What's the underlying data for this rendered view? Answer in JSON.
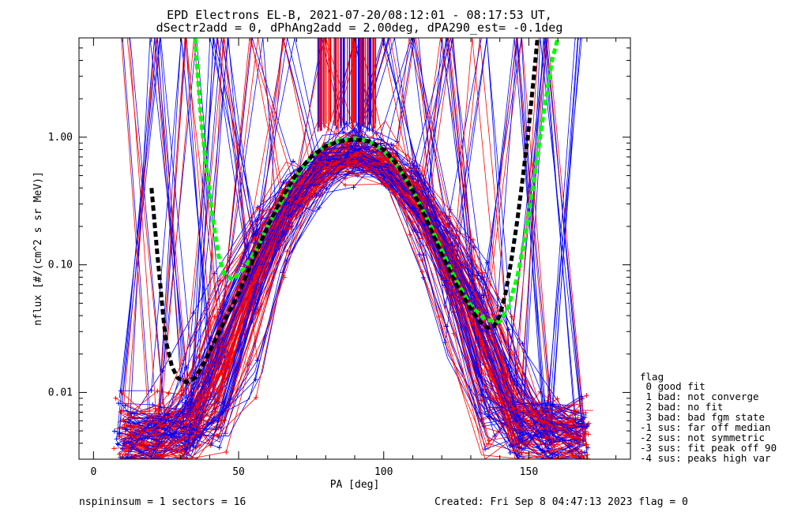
{
  "header": {
    "title_line1": "EPD Electrons EL-B, 2021-07-20/08:12:01 - 08:17:53 UT,",
    "title_line2": "dSectr2add = 0, dPhAng2add = 2.00deg, dPA290_est=  -0.1deg"
  },
  "footer": {
    "left": "nspininsum =  1  sectors = 16",
    "right": "Created: Fri Sep  8 04:47:13 2023   flag = 0"
  },
  "legend": {
    "title": "flag",
    "entries": [
      " 0 good fit",
      " 1 bad: not converge",
      " 2 bad: no fit",
      " 3 bad: bad fgm state",
      "-1 sus: far off median",
      "-2 sus: not symmetric",
      "-3 sus: fit peak off 90",
      "-4 sus: peaks high var"
    ]
  },
  "chart_data": {
    "type": "line",
    "xlabel": "PA [deg]",
    "ylabel": "nflux [#/(cm^2 s sr MeV)]",
    "xlim": [
      -5,
      185
    ],
    "ylim": [
      0.003,
      6.0
    ],
    "yscale": "log",
    "x_ticks": [
      0,
      50,
      100,
      150
    ],
    "y_ticks": [
      {
        "value": 0.01,
        "label": "0.01"
      },
      {
        "value": 0.1,
        "label": "0.10"
      },
      {
        "value": 1.0,
        "label": "1.00"
      }
    ],
    "colors": {
      "red": "#ff0000",
      "blue": "#0000ff",
      "green": "#00ff00",
      "black": "#000000"
    },
    "series": [
      {
        "color": "#00ff00",
        "style": "dashed",
        "x": [
          35,
          37,
          39,
          41,
          43,
          45,
          48,
          52,
          56,
          60,
          65,
          70,
          75,
          80,
          85,
          90,
          95,
          100,
          105,
          110,
          115,
          120,
          125,
          130,
          135,
          140,
          143,
          146,
          149,
          152,
          155,
          158,
          160
        ],
        "y": [
          6.0,
          1.4,
          0.55,
          0.24,
          0.12,
          0.085,
          0.076,
          0.095,
          0.13,
          0.2,
          0.32,
          0.5,
          0.7,
          0.86,
          0.95,
          0.98,
          0.93,
          0.78,
          0.58,
          0.38,
          0.23,
          0.13,
          0.075,
          0.048,
          0.037,
          0.036,
          0.047,
          0.08,
          0.18,
          0.5,
          1.5,
          4.0,
          6.0
        ]
      },
      {
        "color": "#000000",
        "style": "dashed",
        "x": [
          20,
          21,
          22,
          23,
          24,
          25,
          27,
          29,
          32,
          35,
          38,
          42,
          46,
          50,
          55,
          60,
          65,
          70,
          75,
          80,
          85,
          90,
          95,
          100,
          105,
          110,
          115,
          120,
          125,
          130,
          133,
          136,
          138,
          140,
          142,
          144,
          146,
          148,
          150,
          152,
          153
        ],
        "y": [
          0.4,
          0.22,
          0.12,
          0.07,
          0.04,
          0.025,
          0.016,
          0.013,
          0.012,
          0.013,
          0.017,
          0.026,
          0.04,
          0.06,
          0.11,
          0.2,
          0.34,
          0.52,
          0.7,
          0.85,
          0.93,
          0.96,
          0.93,
          0.8,
          0.6,
          0.38,
          0.22,
          0.12,
          0.07,
          0.045,
          0.036,
          0.032,
          0.033,
          0.04,
          0.06,
          0.11,
          0.22,
          0.5,
          1.2,
          3.5,
          6.0
        ]
      }
    ]
  }
}
